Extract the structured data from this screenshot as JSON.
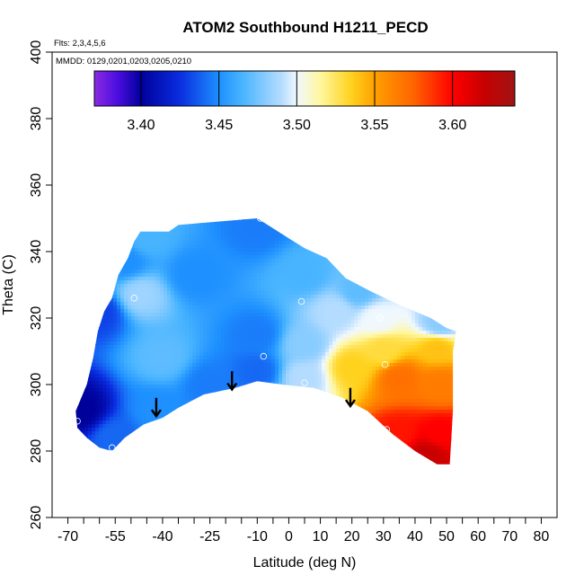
{
  "chart_data": {
    "type": "heatmap",
    "title": "ATOM2 Southbound H1211_PECD",
    "subtitle_flights": "Flts: 2,3,4,5,6",
    "subtitle_dates": "MMDD: 0129,0201,0203,0205,0210",
    "xlabel": "Latitude (deg N)",
    "ylabel": "Theta (C)",
    "xlim": [
      -75,
      85
    ],
    "ylim": [
      260,
      400
    ],
    "x_ticks": [
      -70,
      -65,
      -60,
      -55,
      -50,
      -45,
      -40,
      -35,
      -30,
      -25,
      -20,
      -15,
      -10,
      -5,
      0,
      5,
      10,
      15,
      20,
      25,
      30,
      35,
      40,
      45,
      50,
      55,
      60,
      65,
      70,
      75,
      80
    ],
    "x_tick_labels": [
      "-70",
      "-55",
      "-40",
      "-25",
      "-10",
      "0",
      "10",
      "20",
      "30",
      "40",
      "50",
      "60",
      "70",
      "80"
    ],
    "x_tick_label_values": [
      -70,
      -55,
      -40,
      -25,
      -10,
      0,
      10,
      20,
      30,
      40,
      50,
      60,
      70,
      80
    ],
    "y_ticks": [
      260,
      280,
      300,
      320,
      340,
      360,
      380,
      400
    ],
    "y_tick_labels": [
      "260",
      "280",
      "300",
      "320",
      "340",
      "360",
      "380",
      "400"
    ],
    "colorbar": {
      "min": 3.37,
      "max": 3.64,
      "ticks": [
        3.4,
        3.45,
        3.5,
        3.55,
        3.6
      ],
      "tick_labels": [
        "3.40",
        "3.45",
        "3.50",
        "3.55",
        "3.60"
      ],
      "segment_bounds": [
        3.37,
        3.4,
        3.45,
        3.5,
        3.55,
        3.6,
        3.64
      ],
      "stops": [
        {
          "v": 3.37,
          "c": "#8a2be2"
        },
        {
          "v": 3.385,
          "c": "#4b0ee0"
        },
        {
          "v": 3.4,
          "c": "#00009a"
        },
        {
          "v": 3.425,
          "c": "#0a2de0"
        },
        {
          "v": 3.45,
          "c": "#1e90ff"
        },
        {
          "v": 3.465,
          "c": "#48b4ff"
        },
        {
          "v": 3.49,
          "c": "#b4dcff"
        },
        {
          "v": 3.5,
          "c": "#f0f8ff"
        },
        {
          "v": 3.515,
          "c": "#fff7a0"
        },
        {
          "v": 3.535,
          "c": "#ffd21e"
        },
        {
          "v": 3.55,
          "c": "#ffa000"
        },
        {
          "v": 3.575,
          "c": "#ff6400"
        },
        {
          "v": 3.6,
          "c": "#ff0000"
        },
        {
          "v": 3.62,
          "c": "#c80000"
        },
        {
          "v": 3.64,
          "c": "#a01414"
        }
      ]
    },
    "field_boundary": [
      [
        -67,
        287
      ],
      [
        -67.5,
        292
      ],
      [
        -64,
        300
      ],
      [
        -62,
        308
      ],
      [
        -60.5,
        316
      ],
      [
        -58.5,
        322
      ],
      [
        -56,
        326
      ],
      [
        -54,
        333
      ],
      [
        -51,
        338
      ],
      [
        -49,
        343
      ],
      [
        -47,
        346
      ],
      [
        -38,
        346
      ],
      [
        -35,
        348
      ],
      [
        -10,
        350
      ],
      [
        -5,
        347
      ],
      [
        0,
        344
      ],
      [
        5,
        341
      ],
      [
        12,
        338
      ],
      [
        18,
        332
      ],
      [
        26,
        328
      ],
      [
        35,
        324
      ],
      [
        45,
        320
      ],
      [
        50,
        317
      ],
      [
        53,
        316
      ],
      [
        52,
        310
      ],
      [
        52,
        292
      ],
      [
        51,
        276
      ],
      [
        47,
        276
      ],
      [
        40,
        280
      ],
      [
        33,
        285
      ],
      [
        25,
        292
      ],
      [
        17,
        296
      ],
      [
        8,
        299
      ],
      [
        -2,
        300
      ],
      [
        -10,
        301
      ],
      [
        -17,
        299
      ],
      [
        -27,
        297
      ],
      [
        -35,
        293
      ],
      [
        -40,
        290
      ],
      [
        -46,
        288
      ],
      [
        -52,
        284
      ],
      [
        -56,
        280
      ],
      [
        -60,
        281
      ],
      [
        -64,
        284
      ]
    ],
    "field_anchors": [
      {
        "lat": -66,
        "theta": 292,
        "value": 3.4
      },
      {
        "lat": -60,
        "theta": 322,
        "value": 3.43
      },
      {
        "lat": -52,
        "theta": 337,
        "value": 3.45
      },
      {
        "lat": -47,
        "theta": 327,
        "value": 3.485
      },
      {
        "lat": -45,
        "theta": 344,
        "value": 3.465
      },
      {
        "lat": -55,
        "theta": 284,
        "value": 3.44
      },
      {
        "lat": -42,
        "theta": 292,
        "value": 3.45
      },
      {
        "lat": -40,
        "theta": 308,
        "value": 3.47
      },
      {
        "lat": -30,
        "theta": 333,
        "value": 3.45
      },
      {
        "lat": -25,
        "theta": 300,
        "value": 3.445
      },
      {
        "lat": -10,
        "theta": 347,
        "value": 3.445
      },
      {
        "lat": -10,
        "theta": 315,
        "value": 3.445
      },
      {
        "lat": -10,
        "theta": 304,
        "value": 3.44
      },
      {
        "lat": 5,
        "theta": 333,
        "value": 3.465
      },
      {
        "lat": 5,
        "theta": 312,
        "value": 3.48
      },
      {
        "lat": 5,
        "theta": 302,
        "value": 3.49
      },
      {
        "lat": 15,
        "theta": 322,
        "value": 3.49
      },
      {
        "lat": 22,
        "theta": 328,
        "value": 3.47
      },
      {
        "lat": 20,
        "theta": 305,
        "value": 3.535
      },
      {
        "lat": 28,
        "theta": 320,
        "value": 3.5
      },
      {
        "lat": 30,
        "theta": 310,
        "value": 3.53
      },
      {
        "lat": 35,
        "theta": 302,
        "value": 3.57
      },
      {
        "lat": 35,
        "theta": 285,
        "value": 3.595
      },
      {
        "lat": 48,
        "theta": 318,
        "value": 3.48
      },
      {
        "lat": 47,
        "theta": 311,
        "value": 3.54
      },
      {
        "lat": 48,
        "theta": 300,
        "value": 3.565
      },
      {
        "lat": 48,
        "theta": 285,
        "value": 3.6
      },
      {
        "lat": 44,
        "theta": 279,
        "value": 3.62
      }
    ],
    "sample_points": [
      {
        "lat": -51,
        "theta": 345
      },
      {
        "lat": -54,
        "theta": 337
      },
      {
        "lat": -49,
        "theta": 326
      },
      {
        "lat": -9,
        "theta": 350
      },
      {
        "lat": 4,
        "theta": 325
      },
      {
        "lat": -8,
        "theta": 308.5
      },
      {
        "lat": 5,
        "theta": 300.5
      },
      {
        "lat": 29,
        "theta": 320
      },
      {
        "lat": 30.5,
        "theta": 306
      },
      {
        "lat": 31,
        "theta": 286.5
      },
      {
        "lat": -56,
        "theta": 281
      },
      {
        "lat": -67,
        "theta": 289
      }
    ],
    "arrows": [
      {
        "lat": -42,
        "theta_top": 296,
        "theta_bottom": 290.5
      },
      {
        "lat": -18,
        "theta_top": 304,
        "theta_bottom": 298.5
      },
      {
        "lat": 19.5,
        "theta_top": 299,
        "theta_bottom": 293.5
      }
    ]
  }
}
